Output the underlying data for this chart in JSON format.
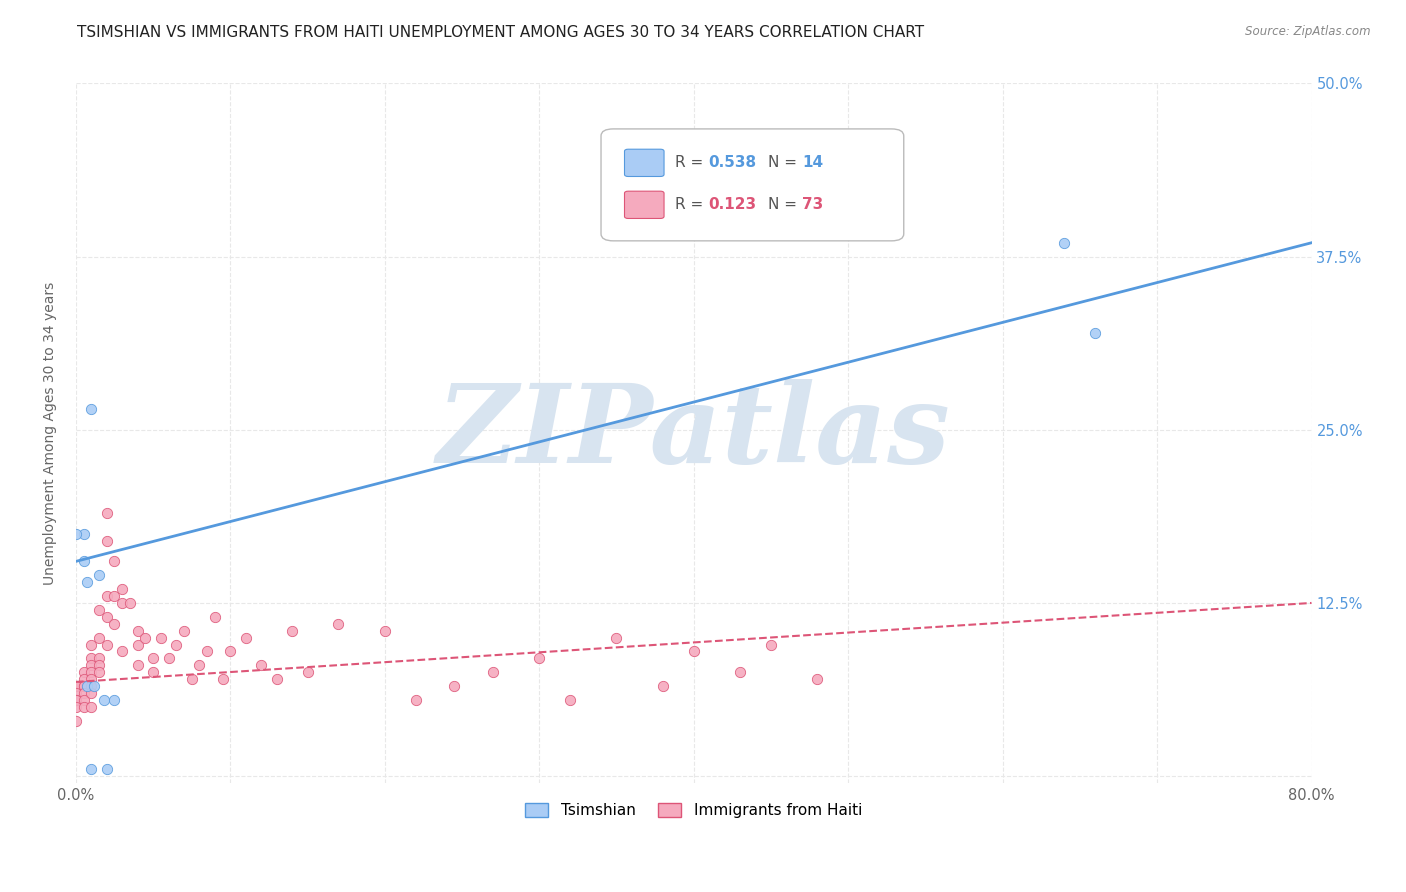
{
  "title": "TSIMSHIAN VS IMMIGRANTS FROM HAITI UNEMPLOYMENT AMONG AGES 30 TO 34 YEARS CORRELATION CHART",
  "source": "Source: ZipAtlas.com",
  "ylabel": "Unemployment Among Ages 30 to 34 years",
  "xlim": [
    0.0,
    0.8
  ],
  "ylim": [
    -0.005,
    0.5
  ],
  "xticks": [
    0.0,
    0.1,
    0.2,
    0.3,
    0.4,
    0.5,
    0.6,
    0.7,
    0.8
  ],
  "yticks": [
    0.0,
    0.125,
    0.25,
    0.375,
    0.5
  ],
  "tsimshian_color": "#aaccf5",
  "haiti_color": "#f5aabe",
  "tsimshian_line_color": "#5599dd",
  "haiti_line_color": "#dd5577",
  "watermark": "ZIPatlas",
  "watermark_color": "#d8e4f0",
  "legend_label1": "Tsimshian",
  "legend_label2": "Immigrants from Haiti",
  "tsimshian_x": [
    0.005,
    0.005,
    0.01,
    0.01,
    0.015,
    0.02,
    0.64,
    0.66,
    0.0,
    0.007,
    0.007,
    0.012,
    0.018,
    0.025
  ],
  "tsimshian_y": [
    0.175,
    0.155,
    0.265,
    0.005,
    0.145,
    0.005,
    0.385,
    0.32,
    0.175,
    0.14,
    0.065,
    0.065,
    0.055,
    0.055
  ],
  "haiti_x": [
    0.0,
    0.0,
    0.0,
    0.0,
    0.0,
    0.0,
    0.0,
    0.005,
    0.005,
    0.005,
    0.005,
    0.005,
    0.005,
    0.005,
    0.01,
    0.01,
    0.01,
    0.01,
    0.01,
    0.01,
    0.01,
    0.01,
    0.015,
    0.015,
    0.015,
    0.015,
    0.015,
    0.02,
    0.02,
    0.02,
    0.02,
    0.02,
    0.025,
    0.025,
    0.025,
    0.03,
    0.03,
    0.03,
    0.035,
    0.04,
    0.04,
    0.04,
    0.045,
    0.05,
    0.05,
    0.055,
    0.06,
    0.065,
    0.07,
    0.075,
    0.08,
    0.085,
    0.09,
    0.095,
    0.1,
    0.11,
    0.12,
    0.13,
    0.14,
    0.15,
    0.17,
    0.2,
    0.22,
    0.245,
    0.27,
    0.3,
    0.32,
    0.35,
    0.38,
    0.4,
    0.43,
    0.45,
    0.48
  ],
  "haiti_y": [
    0.065,
    0.065,
    0.06,
    0.055,
    0.055,
    0.05,
    0.04,
    0.075,
    0.07,
    0.065,
    0.065,
    0.06,
    0.055,
    0.05,
    0.095,
    0.085,
    0.08,
    0.075,
    0.07,
    0.065,
    0.06,
    0.05,
    0.12,
    0.1,
    0.085,
    0.08,
    0.075,
    0.19,
    0.17,
    0.13,
    0.115,
    0.095,
    0.155,
    0.13,
    0.11,
    0.135,
    0.125,
    0.09,
    0.125,
    0.105,
    0.095,
    0.08,
    0.1,
    0.085,
    0.075,
    0.1,
    0.085,
    0.095,
    0.105,
    0.07,
    0.08,
    0.09,
    0.115,
    0.07,
    0.09,
    0.1,
    0.08,
    0.07,
    0.105,
    0.075,
    0.11,
    0.105,
    0.055,
    0.065,
    0.075,
    0.085,
    0.055,
    0.1,
    0.065,
    0.09,
    0.075,
    0.095,
    0.07
  ],
  "tsimshian_line_x": [
    0.0,
    0.8
  ],
  "tsimshian_line_y": [
    0.155,
    0.385
  ],
  "haiti_line_x": [
    0.0,
    0.8
  ],
  "haiti_line_y": [
    0.068,
    0.125
  ],
  "bg_color": "#ffffff",
  "grid_color": "#e8e8e8",
  "title_fontsize": 11,
  "axis_label_fontsize": 10,
  "tick_fontsize": 10.5,
  "right_tick_color": "#5599dd"
}
